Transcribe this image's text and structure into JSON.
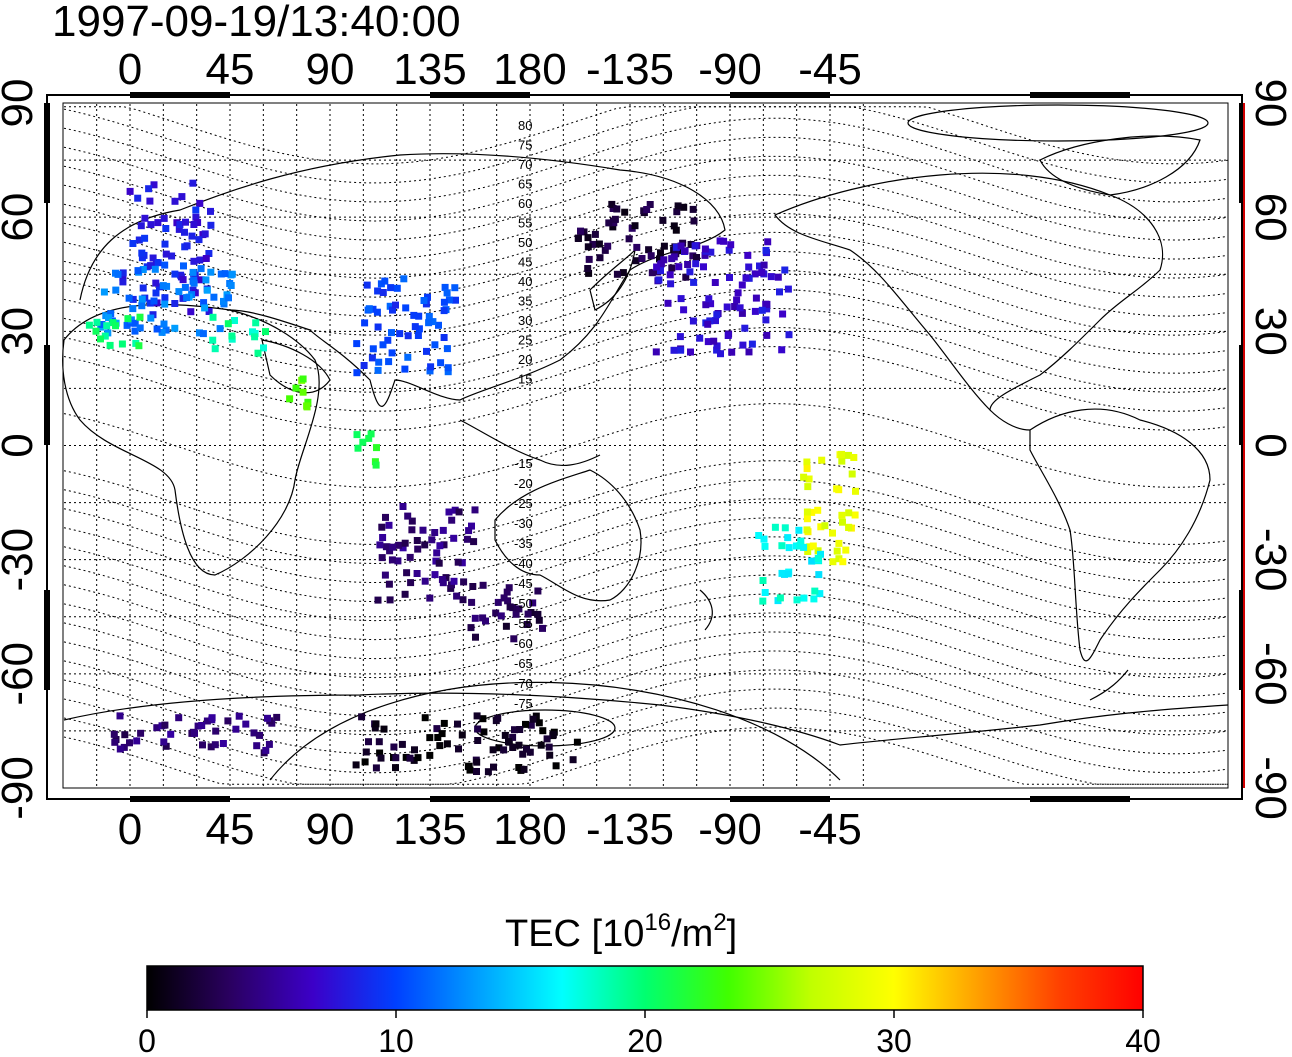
{
  "title": "1997-09-19/13:40:00",
  "axes": {
    "top_lon_ticks": [
      "0",
      "45",
      "90",
      "135",
      "180",
      "-135",
      "-90",
      "-45"
    ],
    "bottom_lon_ticks": [
      "0",
      "45",
      "90",
      "135",
      "180",
      "-135",
      "-90",
      "-45"
    ],
    "left_lat_ticks": [
      "90",
      "60",
      "30",
      "0",
      "-30",
      "-60",
      "-90"
    ],
    "right_lat_ticks": [
      "90",
      "60",
      "30",
      "0",
      "-30",
      "-60",
      "-90"
    ]
  },
  "colorbar": {
    "label_main": "TEC  [10",
    "label_sup1": "16",
    "label_mid": "/m",
    "label_sup2": "2",
    "label_end": "]",
    "ticks": [
      "0",
      "10",
      "20",
      "30",
      "40"
    ],
    "range": [
      0,
      40
    ],
    "colors": [
      "#000000",
      "#2a0060",
      "#3c00c8",
      "#0040ff",
      "#00a0ff",
      "#00ffff",
      "#00ff70",
      "#40ff00",
      "#c0ff00",
      "#ffff00",
      "#ffa000",
      "#ff4000",
      "#ff0000"
    ]
  },
  "contour_labels": {
    "north": [
      "80",
      "75",
      "70",
      "65",
      "60",
      "55",
      "50",
      "45",
      "40",
      "35",
      "30",
      "25",
      "20",
      "15"
    ],
    "south": [
      "-15",
      "-20",
      "-25",
      "-30",
      "-35",
      "-40",
      "-45",
      "-50",
      "-55",
      "-60",
      "-65",
      "-70",
      "-75"
    ]
  },
  "chart_data": {
    "type": "heatmap",
    "title": "1997-09-19/13:40:00",
    "colorbar_label": "TEC [10^16/m^2]",
    "value_range": [
      0,
      40
    ],
    "lon_range": [
      -25,
      330
    ],
    "lat_range": [
      -90,
      90
    ],
    "grid": true,
    "regions": [
      {
        "lon_min": -5,
        "lon_max": 35,
        "lat_min": 35,
        "lat_max": 70,
        "tec": 8
      },
      {
        "lon_min": -15,
        "lon_max": 45,
        "lat_min": 30,
        "lat_max": 50,
        "tec": 12
      },
      {
        "lon_min": -20,
        "lon_max": 5,
        "lat_min": 25,
        "lat_max": 35,
        "tec": 20
      },
      {
        "lon_min": 35,
        "lon_max": 60,
        "lat_min": 25,
        "lat_max": 35,
        "tec": 19
      },
      {
        "lon_min": 70,
        "lon_max": 80,
        "lat_min": 10,
        "lat_max": 20,
        "tec": 24
      },
      {
        "lon_min": 100,
        "lon_max": 145,
        "lat_min": 20,
        "lat_max": 45,
        "tec": 10
      },
      {
        "lon_min": 100,
        "lon_max": 110,
        "lat_min": -5,
        "lat_max": 5,
        "tec": 22
      },
      {
        "lon_min": 110,
        "lon_max": 155,
        "lat_min": -40,
        "lat_max": -15,
        "tec": 4
      },
      {
        "lon_min": 150,
        "lon_max": 185,
        "lat_min": -50,
        "lat_max": -35,
        "tec": 3
      },
      {
        "lon_min": 200,
        "lon_max": 255,
        "lat_min": 45,
        "lat_max": 65,
        "tec": 2
      },
      {
        "lon_min": 235,
        "lon_max": 295,
        "lat_min": 25,
        "lat_max": 55,
        "tec": 7
      },
      {
        "lon_min": 300,
        "lon_max": 325,
        "lat_min": -30,
        "lat_max": 0,
        "tec": 29
      },
      {
        "lon_min": 280,
        "lon_max": 310,
        "lat_min": -40,
        "lat_max": -20,
        "tec": 17
      },
      {
        "lon_min": -10,
        "lon_max": 70,
        "lat_min": -80,
        "lat_max": -70,
        "tec": 4
      },
      {
        "lon_min": 100,
        "lon_max": 200,
        "lat_min": -85,
        "lat_max": -70,
        "tec": 1
      }
    ]
  }
}
